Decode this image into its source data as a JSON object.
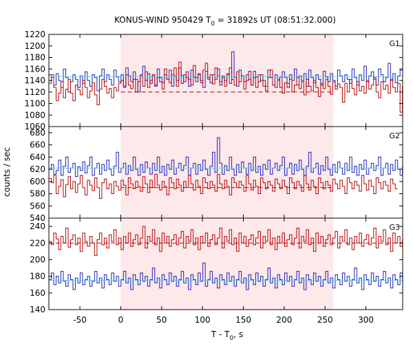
{
  "chart_data": {
    "type": "line",
    "title": "KONUS-WIND 950429 T",
    "title_sub": "0",
    "title_rest": " = 31892s UT (08:51:32.000)",
    "xlabel": "T - T",
    "xlabel_sub": "0",
    "xlabel_rest": ", s",
    "ylabel": "counts / sec",
    "xlim": [
      -88,
      345
    ],
    "xticks": [
      -50,
      0,
      50,
      100,
      150,
      200,
      250,
      300
    ],
    "highlight": {
      "from": 0,
      "to": 260,
      "color": "#fde8ea"
    },
    "step_seconds": 2.944,
    "colors": {
      "signal": "#b30000",
      "background": "#1f1fb3",
      "fit": "#66ccee"
    },
    "panels": [
      {
        "name": "G1",
        "ylim": [
          1060,
          1220
        ],
        "yticks": [
          1060,
          1080,
          1100,
          1120,
          1140,
          1160,
          1180,
          1200,
          1220
        ],
        "red_fit": {
          "value": 1120,
          "from": 0,
          "to": 260
        },
        "blue_fit": {
          "value": 1147,
          "from": -88,
          "to": 345
        },
        "red": [
          1135,
          1150,
          1128,
          1105,
          1118,
          1138,
          1110,
          1125,
          1142,
          1118,
          1105,
          1132,
          1124,
          1115,
          1140,
          1128,
          1110,
          1122,
          1136,
          1115,
          1098,
          1125,
          1142,
          1130,
          1118,
          1126,
          1110,
          1128,
          1122,
          1135,
          1140,
          1128,
          1150,
          1132,
          1126,
          1142,
          1120,
          1138,
          1148,
          1130,
          1155,
          1128,
          1140,
          1150,
          1132,
          1145,
          1138,
          1125,
          1160,
          1142,
          1136,
          1150,
          1162,
          1130,
          1172,
          1148,
          1138,
          1155,
          1142,
          1132,
          1166,
          1145,
          1150,
          1136,
          1158,
          1170,
          1142,
          1150,
          1134,
          1162,
          1148,
          1138,
          1145,
          1130,
          1150,
          1162,
          1142,
          1132,
          1155,
          1138,
          1148,
          1125,
          1140,
          1156,
          1132,
          1145,
          1128,
          1150,
          1140,
          1130,
          1122,
          1145,
          1158,
          1132,
          1128,
          1140,
          1146,
          1118,
          1136,
          1128,
          1142,
          1120,
          1132,
          1145,
          1126,
          1138,
          1115,
          1142,
          1130,
          1122,
          1140,
          1128,
          1112,
          1135,
          1126,
          1142,
          1130,
          1116,
          1138,
          1125,
          1134,
          1128,
          1102,
          1135,
          1120,
          1142,
          1126,
          1115,
          1138,
          1122,
          1130,
          1118,
          1140,
          1125,
          1132,
          1145,
          1120,
          1110,
          1138,
          1125,
          1132,
          1118,
          1142,
          1128,
          1120,
          1135,
          1085,
          1130,
          1120
        ],
        "blue": [
          1150,
          1145,
          1132,
          1152,
          1140,
          1128,
          1160,
          1145,
          1120,
          1138,
          1150,
          1142,
          1128,
          1148,
          1135,
          1155,
          1140,
          1130,
          1150,
          1145,
          1122,
          1148,
          1160,
          1138,
          1150,
          1142,
          1132,
          1158,
          1146,
          1138,
          1150,
          1130,
          1162,
          1148,
          1138,
          1155,
          1142,
          1120,
          1150,
          1165,
          1140,
          1152,
          1135,
          1148,
          1130,
          1160,
          1145,
          1136,
          1150,
          1142,
          1158,
          1130,
          1148,
          1140,
          1162,
          1135,
          1150,
          1145,
          1130,
          1158,
          1146,
          1138,
          1152,
          1140,
          1128,
          1156,
          1145,
          1136,
          1150,
          1142,
          1160,
          1132,
          1148,
          1140,
          1152,
          1135,
          1190,
          1145,
          1130,
          1158,
          1148,
          1138,
          1150,
          1142,
          1132,
          1156,
          1146,
          1138,
          1150,
          1140,
          1130,
          1158,
          1145,
          1132,
          1150,
          1142,
          1128,
          1155,
          1145,
          1135,
          1150,
          1140,
          1160,
          1132,
          1148,
          1140,
          1152,
          1130,
          1158,
          1145,
          1136,
          1150,
          1142,
          1132,
          1156,
          1146,
          1138,
          1152,
          1140,
          1130,
          1158,
          1148,
          1138,
          1150,
          1142,
          1135,
          1160,
          1145,
          1132,
          1150,
          1140,
          1165,
          1138,
          1148,
          1155,
          1142,
          1132,
          1160,
          1150,
          1138,
          1145,
          1170,
          1140,
          1152,
          1136,
          1148,
          1158
        ]
      },
      {
        "name": "G2",
        "ylim": [
          540,
          690
        ],
        "yticks": [
          540,
          560,
          580,
          600,
          620,
          640,
          660,
          680
        ],
        "red_fit": {
          "value": 590,
          "from": 0,
          "to": 260
        },
        "blue_fit": {
          "value": 622,
          "from": -88,
          "to": 345
        },
        "red": [
          605,
          598,
          610,
          580,
          592,
          603,
          575,
          595,
          608,
          588,
          600,
          582,
          596,
          610,
          590,
          578,
          602,
          594,
          585,
          606,
          590,
          572,
          598,
          604,
          588,
          596,
          580,
          600,
          592,
          586,
          602,
          594,
          578,
          606,
          596,
          588,
          600,
          592,
          584,
          608,
          596,
          582,
          602,
          590,
          612,
          594,
          586,
          600,
          592,
          578,
          606,
          598,
          588,
          604,
          594,
          584,
          600,
          590,
          610,
          596,
          586,
          602,
          592,
          580,
          606,
          598,
          588,
          600,
          594,
          584,
          612,
          596,
          588,
          602,
          592,
          578,
          606,
          598,
          590,
          600,
          594,
          584,
          610,
          596,
          586,
          602,
          592,
          580,
          606,
          598,
          588,
          600,
          594,
          584,
          604,
          596,
          588,
          602,
          592,
          580,
          606,
          598,
          588,
          600,
          594,
          584,
          610,
          596,
          586,
          602,
          592,
          580,
          606,
          598,
          588,
          600,
          594,
          584,
          604,
          596,
          588,
          602,
          592,
          580,
          606,
          598,
          588,
          600,
          594,
          584,
          610,
          596,
          586,
          602,
          592,
          580,
          606,
          598,
          588,
          600,
          594,
          584,
          604,
          596,
          588
        ],
        "blue": [
          620,
          628,
          612,
          618,
          635,
          610,
          625,
          640,
          615,
          622,
          630,
          608,
          624,
          618,
          632,
          614,
          626,
          640,
          610,
          622,
          630,
          612,
          628,
          618,
          635,
          620,
          610,
          625,
          648,
          615,
          622,
          630,
          612,
          626,
          618,
          640,
          620,
          610,
          628,
          615,
          632,
          622,
          612,
          630,
          618,
          640,
          615,
          625,
          610,
          628,
          620,
          635,
          612,
          622,
          630,
          618,
          626,
          640,
          610,
          622,
          630,
          612,
          628,
          618,
          635,
          620,
          610,
          625,
          648,
          615,
          672,
          630,
          612,
          626,
          618,
          640,
          620,
          610,
          628,
          615,
          632,
          622,
          612,
          630,
          618,
          640,
          615,
          625,
          610,
          628,
          620,
          635,
          612,
          622,
          630,
          618,
          626,
          640,
          610,
          622,
          630,
          612,
          628,
          618,
          635,
          620,
          610,
          625,
          648,
          615,
          622,
          630,
          612,
          626,
          618,
          640,
          620,
          610,
          628,
          615,
          632,
          622,
          612,
          630,
          618,
          640,
          615,
          625,
          610,
          628,
          620,
          635,
          612,
          622,
          630,
          618,
          626,
          640,
          610,
          622,
          630,
          612,
          628,
          618,
          635,
          620,
          610,
          625,
          615
        ]
      },
      {
        "name": "G3",
        "ylim": [
          140,
          250
        ],
        "yticks": [
          140,
          160,
          180,
          200,
          220,
          240
        ],
        "red_fit": {
          "value": 220,
          "from": -88,
          "to": 345
        },
        "blue_fit": {
          "value": 175,
          "from": -88,
          "to": 345
        },
        "red": [
          222,
          218,
          232,
          225,
          212,
          228,
          220,
          238,
          215,
          224,
          230,
          218,
          226,
          210,
          232,
          222,
          216,
          228,
          220,
          205,
          224,
          232,
          218,
          226,
          214,
          230,
          222,
          236,
          218,
          226,
          212,
          228,
          220,
          232,
          216,
          224,
          230,
          218,
          226,
          240,
          214,
          228,
          222,
          236,
          218,
          226,
          210,
          232,
          220,
          228,
          216,
          224,
          230,
          218,
          226,
          234,
          214,
          228,
          222,
          236,
          218,
          226,
          212,
          228,
          220,
          232,
          216,
          224,
          230,
          218,
          226,
          238,
          214,
          228,
          222,
          236,
          218,
          226,
          210,
          232,
          220,
          228,
          216,
          224,
          230,
          218,
          226,
          234,
          214,
          228,
          222,
          236,
          218,
          226,
          212,
          228,
          220,
          232,
          216,
          224,
          230,
          218,
          226,
          238,
          214,
          228,
          222,
          236,
          218,
          226,
          210,
          232,
          220,
          228,
          216,
          224,
          230,
          218,
          226,
          234,
          214,
          228,
          222,
          236,
          218,
          226,
          212,
          228,
          220,
          232,
          216,
          224,
          230,
          218,
          226,
          238,
          214,
          228,
          222,
          236,
          218,
          226,
          210,
          232,
          220,
          228,
          216,
          224,
          230
        ],
        "blue": [
          176,
          184,
          170,
          180,
          172,
          186,
          174,
          168,
          182,
          176,
          164,
          178,
          172,
          184,
          170,
          176,
          180,
          168,
          174,
          186,
          172,
          178,
          166,
          182,
          176,
          170,
          184,
          174,
          180,
          168,
          176,
          186,
          172,
          178,
          164,
          182,
          176,
          170,
          184,
          174,
          180,
          168,
          176,
          190,
          172,
          178,
          166,
          182,
          176,
          170,
          184,
          174,
          180,
          168,
          176,
          186,
          172,
          178,
          164,
          182,
          176,
          170,
          184,
          174,
          196,
          168,
          176,
          186,
          172,
          178,
          166,
          182,
          176,
          170,
          184,
          174,
          180,
          168,
          176,
          186,
          172,
          178,
          164,
          182,
          176,
          170,
          184,
          174,
          180,
          168,
          176,
          190,
          172,
          178,
          166,
          182,
          176,
          170,
          184,
          174,
          180,
          168,
          176,
          186,
          172,
          178,
          164,
          182,
          176,
          170,
          184,
          174,
          180,
          168,
          176,
          186,
          172,
          178,
          166,
          182,
          176,
          170,
          184,
          174,
          180,
          168,
          176,
          190,
          172,
          178,
          164,
          182,
          176,
          170,
          184,
          174,
          180,
          168,
          176,
          186,
          172,
          178,
          166,
          182,
          176,
          170,
          184,
          174,
          180,
          168,
          176,
          186,
          172,
          178,
          164
        ]
      }
    ]
  }
}
